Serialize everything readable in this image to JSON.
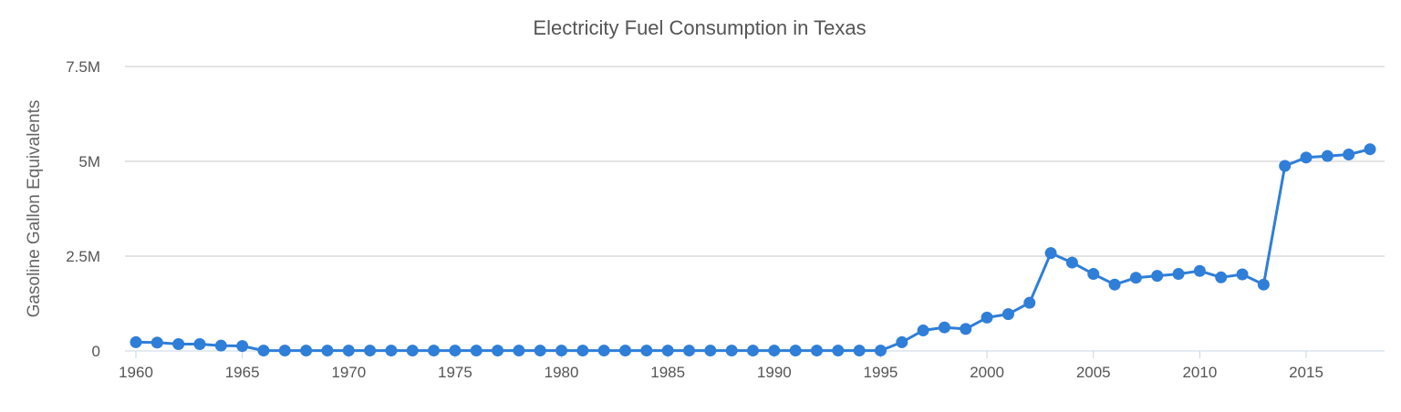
{
  "chart_data": {
    "type": "line",
    "title": "Electricity Fuel Consumption in Texas",
    "xlabel": "",
    "ylabel": "Gasoline Gallon Equivalents",
    "xlim": [
      1960,
      2018
    ],
    "ylim": [
      0,
      7500000
    ],
    "y_ticks": [
      0,
      2500000,
      5000000,
      7500000
    ],
    "y_tick_labels": [
      "0",
      "2.5M",
      "5M",
      "7.5M"
    ],
    "x_ticks": [
      1960,
      1965,
      1970,
      1975,
      1980,
      1985,
      1990,
      1995,
      2000,
      2005,
      2010,
      2015
    ],
    "x_tick_labels": [
      "1960",
      "1965",
      "1970",
      "1975",
      "1980",
      "1985",
      "1990",
      "1995",
      "2000",
      "2005",
      "2010",
      "2015"
    ],
    "grid": true,
    "color": "#2f7ed8",
    "series": [
      {
        "x": [
          1960,
          1961,
          1962,
          1963,
          1964,
          1965,
          1966,
          1967,
          1968,
          1969,
          1970,
          1971,
          1972,
          1973,
          1974,
          1975,
          1976,
          1977,
          1978,
          1979,
          1980,
          1981,
          1982,
          1983,
          1984,
          1985,
          1986,
          1987,
          1988,
          1989,
          1990,
          1991,
          1992,
          1993,
          1994,
          1995,
          1996,
          1997,
          1998,
          1999,
          2000,
          2001,
          2002,
          2003,
          2004,
          2005,
          2006,
          2007,
          2008,
          2009,
          2010,
          2011,
          2012,
          2013,
          2014,
          2015,
          2016,
          2017,
          2018
        ],
        "values": [
          230000,
          220000,
          180000,
          180000,
          140000,
          130000,
          10000,
          10000,
          10000,
          10000,
          10000,
          10000,
          10000,
          10000,
          10000,
          10000,
          10000,
          10000,
          10000,
          10000,
          10000,
          10000,
          10000,
          10000,
          10000,
          10000,
          10000,
          10000,
          10000,
          10000,
          10000,
          10000,
          10000,
          10000,
          10000,
          10000,
          230000,
          540000,
          620000,
          580000,
          880000,
          970000,
          1270000,
          2580000,
          2330000,
          2030000,
          1750000,
          1930000,
          1980000,
          2030000,
          2110000,
          1940000,
          2020000,
          1750000,
          4880000,
          5100000,
          5140000,
          5180000,
          5320000
        ]
      }
    ]
  }
}
